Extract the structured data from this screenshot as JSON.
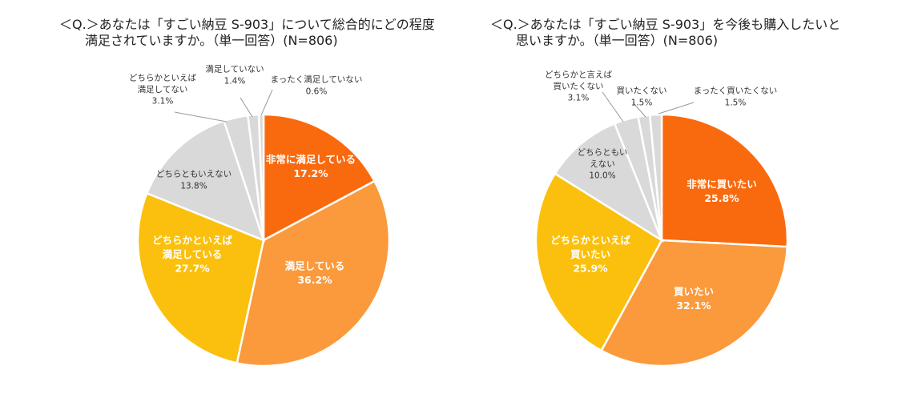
{
  "chart_data": [
    {
      "type": "pie",
      "title": "＜Q.＞あなたは「すごい納豆 S-903」について総合的にどの程度\n　　満足されていますか。（単一回答）(N=806)",
      "series": [
        {
          "name": "非常に満足している",
          "label": "非常に満足している",
          "value_label": "17.2%",
          "value": 17.2,
          "color": "#F96A0E"
        },
        {
          "name": "満足している",
          "label": "満足している",
          "value_label": "36.2%",
          "value": 36.2,
          "color": "#FA9A3C"
        },
        {
          "name": "どちらかといえば満足している",
          "label": "どちらかといえば\n満足している",
          "value_label": "27.7%",
          "value": 27.7,
          "color": "#FBC00D"
        },
        {
          "name": "どちらともいえない",
          "label": "どちらともいえない",
          "value_label": "13.8%",
          "value": 13.8,
          "color": "#D9D9D9"
        },
        {
          "name": "どちらかといえば満足してない",
          "label": "どちらかといえば\n満足してない",
          "value_label": "3.1%",
          "value": 3.1,
          "color": "#D9D9D9"
        },
        {
          "name": "満足していない",
          "label": "満足していない",
          "value_label": "1.4%",
          "value": 1.4,
          "color": "#D9D9D9"
        },
        {
          "name": "まったく満足していない",
          "label": "まったく満足していない",
          "value_label": "0.6%",
          "value": 0.6,
          "color": "#D9D9D9"
        }
      ]
    },
    {
      "type": "pie",
      "title": "＜Q.＞あなたは「すごい納豆 S-903」を今後も購入したいと\n　　思いますか。（単一回答）(N=806)",
      "series": [
        {
          "name": "非常に買いたい",
          "label": "非常に買いたい",
          "value_label": "25.8%",
          "value": 25.8,
          "color": "#F96A0E"
        },
        {
          "name": "買いたい",
          "label": "買いたい",
          "value_label": "32.1%",
          "value": 32.1,
          "color": "#FA9A3C"
        },
        {
          "name": "どちらかといえば買いたい",
          "label": "どちらかといえば\n買いたい",
          "value_label": "25.9%",
          "value": 25.9,
          "color": "#FBC00D"
        },
        {
          "name": "どちらともいえない",
          "label": "どちらともい\nえない",
          "value_label": "10.0%",
          "value": 10.0,
          "color": "#D9D9D9"
        },
        {
          "name": "どちらかと言えば買いたくない",
          "label": "どちらかと言えば\n買いたくない",
          "value_label": "3.1%",
          "value": 3.1,
          "color": "#D9D9D9"
        },
        {
          "name": "買いたくない",
          "label": "買いたくない",
          "value_label": "1.5%",
          "value": 1.5,
          "color": "#D9D9D9"
        },
        {
          "name": "まったく買いたくない",
          "label": "まったく買いたくない",
          "value_label": "1.5%",
          "value": 1.5,
          "color": "#D9D9D9"
        }
      ]
    }
  ]
}
